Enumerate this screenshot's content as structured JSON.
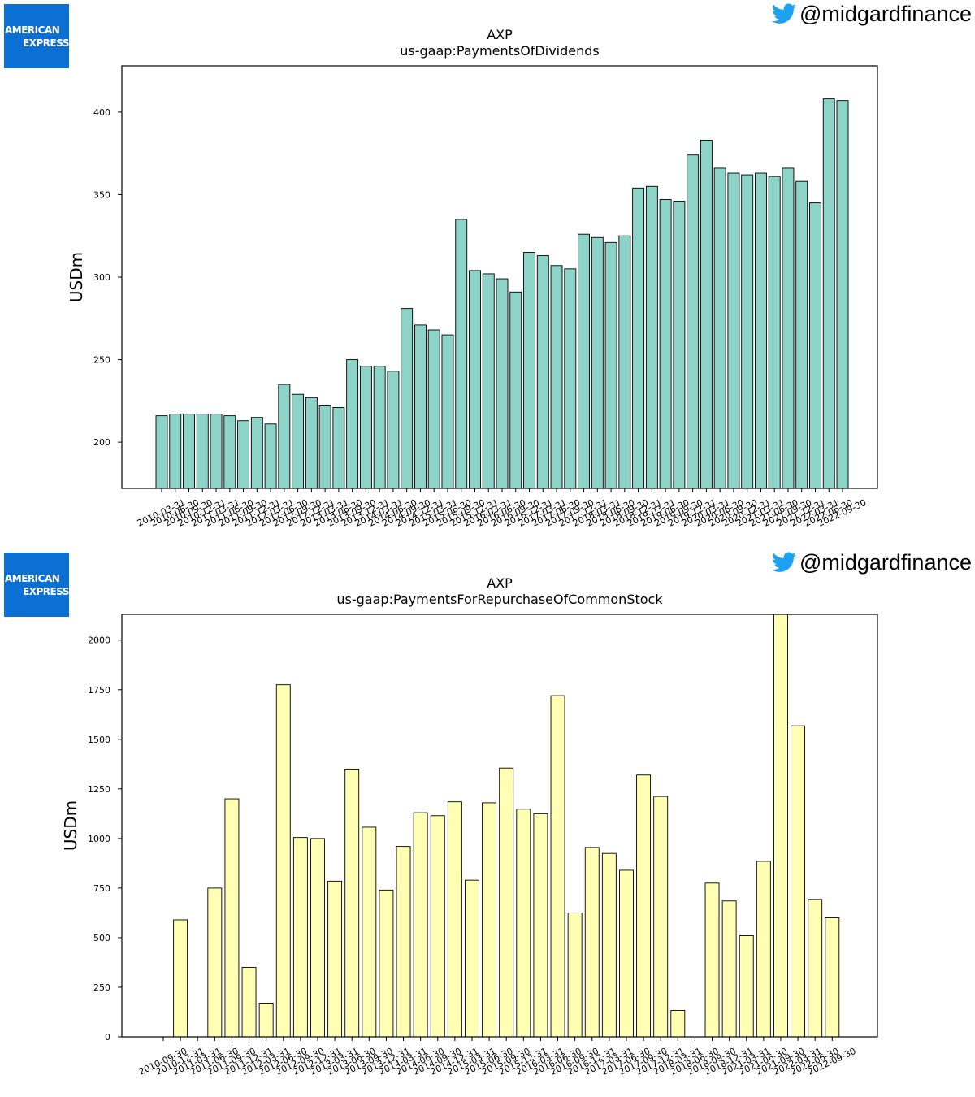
{
  "brand": {
    "logo_line1": "AMERICAN",
    "logo_line2": "EXPRESS",
    "logo_color": "#0b6fd3",
    "twitter_icon": "twitter-bird-icon",
    "twitter_color": "#1da1f2",
    "handle": "@midgardfinance"
  },
  "chart_data": [
    {
      "type": "bar",
      "title": "AXP",
      "subtitle": "us-gaap:PaymentsOfDividends",
      "xlabel": "",
      "ylabel": "USDm",
      "ylim": [
        172,
        428
      ],
      "yticks": [
        200,
        250,
        300,
        350,
        400
      ],
      "bar_color": "#8dd3c7",
      "categories": [
        "2010-03-31",
        "2010-06-30",
        "2010-09-30",
        "2010-12-31",
        "2011-03-31",
        "2011-06-30",
        "2011-09-30",
        "2011-12-31",
        "2012-03-31",
        "2012-06-30",
        "2012-09-30",
        "2012-12-31",
        "2013-03-31",
        "2013-06-30",
        "2013-09-30",
        "2013-12-31",
        "2014-03-31",
        "2014-06-30",
        "2014-09-30",
        "2014-12-31",
        "2015-03-31",
        "2015-06-30",
        "2015-09-30",
        "2015-12-31",
        "2016-03-31",
        "2016-06-30",
        "2016-09-30",
        "2016-12-31",
        "2017-03-31",
        "2017-06-30",
        "2017-09-30",
        "2017-12-31",
        "2018-03-31",
        "2018-06-30",
        "2018-09-30",
        "2018-12-31",
        "2019-03-31",
        "2019-06-30",
        "2019-09-30",
        "2019-12-31",
        "2020-03-31",
        "2020-06-30",
        "2020-09-30",
        "2020-12-31",
        "2021-03-31",
        "2021-06-30",
        "2021-09-30",
        "2021-12-31",
        "2022-03-31",
        "2022-06-30",
        "2022-09-30"
      ],
      "values": [
        216,
        217,
        217,
        217,
        217,
        216,
        213,
        215,
        211,
        235,
        229,
        227,
        222,
        221,
        250,
        246,
        246,
        243,
        281,
        271,
        268,
        265,
        335,
        304,
        302,
        299,
        291,
        315,
        313,
        307,
        305,
        326,
        324,
        321,
        325,
        354,
        355,
        347,
        346,
        374,
        383,
        366,
        363,
        362,
        363,
        361,
        366,
        358,
        345,
        408,
        407
      ]
    },
    {
      "type": "bar",
      "title": "AXP",
      "subtitle": "us-gaap:PaymentsForRepurchaseOfCommonStock",
      "xlabel": "",
      "ylabel": "USDm",
      "ylim": [
        0,
        2130
      ],
      "yticks": [
        0,
        250,
        500,
        750,
        1000,
        1250,
        1500,
        1750,
        2000
      ],
      "bar_color": "#ffffb3",
      "categories": [
        "2010-09-30",
        "2010-12-31",
        "2011-03-31",
        "2011-06-30",
        "2011-09-30",
        "2011-12-31",
        "2012-03-31",
        "2012-06-30",
        "2012-09-30",
        "2012-12-31",
        "2013-03-31",
        "2013-06-30",
        "2013-09-30",
        "2013-12-31",
        "2014-03-31",
        "2014-06-30",
        "2014-09-30",
        "2014-12-31",
        "2015-03-31",
        "2015-06-30",
        "2015-09-30",
        "2015-12-31",
        "2016-03-31",
        "2016-06-30",
        "2016-09-30",
        "2016-12-31",
        "2017-03-31",
        "2017-06-30",
        "2017-09-30",
        "2017-12-31",
        "2018-03-31",
        "2018-06-30",
        "2018-09-30",
        "2018-12-31",
        "2021-03-31",
        "2021-06-30",
        "2021-09-30",
        "2022-03-31",
        "2022-06-30",
        "2022-09-30"
      ],
      "values": [
        0,
        590,
        0,
        750,
        1200,
        350,
        170,
        1775,
        1005,
        1000,
        785,
        1350,
        1057,
        740,
        960,
        1130,
        1115,
        1185,
        790,
        1180,
        1355,
        1148,
        1125,
        1720,
        625,
        955,
        925,
        840,
        1320,
        1212,
        133,
        0,
        775,
        685,
        510,
        885,
        2140,
        1568,
        693,
        600
      ]
    }
  ]
}
